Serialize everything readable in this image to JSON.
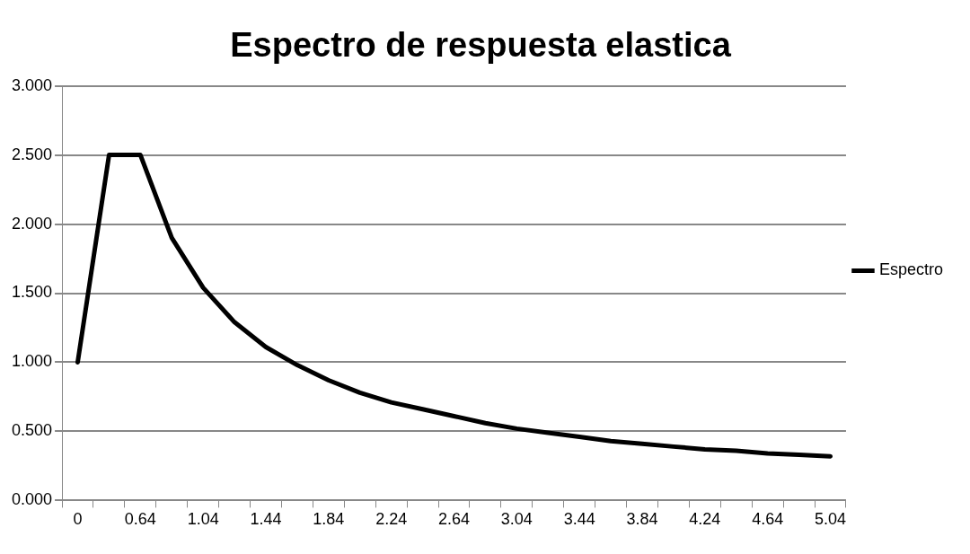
{
  "chart_data": {
    "type": "line",
    "title": "Espectro de respuesta elastica",
    "categories": [
      "0",
      null,
      "0.64",
      null,
      "1.04",
      null,
      "1.44",
      null,
      "1.84",
      null,
      "2.24",
      null,
      "2.64",
      null,
      "3.04",
      null,
      "3.44",
      null,
      "3.84",
      null,
      "4.24",
      null,
      "4.64",
      null,
      "5.04"
    ],
    "series": [
      {
        "name": "Espectro",
        "color": "#000000",
        "values": [
          1.0,
          2.5,
          2.5,
          1.9,
          1.54,
          1.29,
          1.11,
          0.98,
          0.87,
          0.78,
          0.71,
          0.66,
          0.61,
          0.56,
          0.52,
          0.49,
          0.46,
          0.43,
          0.41,
          0.39,
          0.37,
          0.36,
          0.34,
          0.33,
          0.32
        ]
      }
    ],
    "ylim": [
      0,
      3
    ],
    "yticks": [
      {
        "value": 0,
        "label": "0.000"
      },
      {
        "value": 0.5,
        "label": "0.500"
      },
      {
        "value": 1,
        "label": "1.000"
      },
      {
        "value": 1.5,
        "label": "1.500"
      },
      {
        "value": 2,
        "label": "2.000"
      },
      {
        "value": 2.5,
        "label": "2.500"
      },
      {
        "value": 3,
        "label": "3.000"
      }
    ],
    "grid": "y",
    "legend": "right",
    "marker": "none",
    "line_style": "solid"
  }
}
